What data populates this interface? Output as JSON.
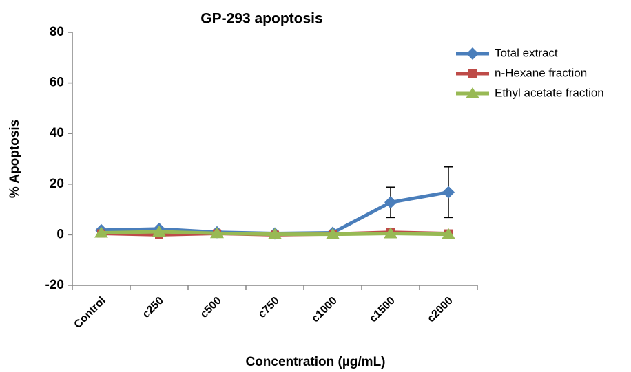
{
  "chart_data": {
    "type": "line",
    "title": "GP-293 apoptosis",
    "x_label": "Concentration (µg/mL)",
    "y_label": "% Apoptosis",
    "categories": [
      "Control",
      "c250",
      "c500",
      "c750",
      "c1000",
      "c1500",
      "c2000"
    ],
    "series": [
      {
        "name": "Total extract",
        "color": "#4a7ebb",
        "marker": "diamond",
        "values": [
          1.8,
          2.3,
          1.0,
          0.5,
          0.8,
          12.8,
          16.8
        ],
        "errors": [
          0,
          0,
          0,
          0,
          0,
          6,
          10
        ]
      },
      {
        "name": "n-Hexane fraction",
        "color": "#be4b48",
        "marker": "square",
        "values": [
          0.5,
          0,
          0.5,
          0,
          0.3,
          1.0,
          0.5
        ]
      },
      {
        "name": "Ethyl acetate fraction",
        "color": "#98b954",
        "marker": "triangle",
        "values": [
          0.8,
          1.2,
          0.6,
          0.2,
          0.2,
          0.5,
          0.2
        ]
      }
    ],
    "ylim": [
      -20,
      80
    ],
    "yticks": [
      -20,
      0,
      20,
      40,
      60,
      80
    ],
    "grid": false,
    "legend": "top-right"
  }
}
